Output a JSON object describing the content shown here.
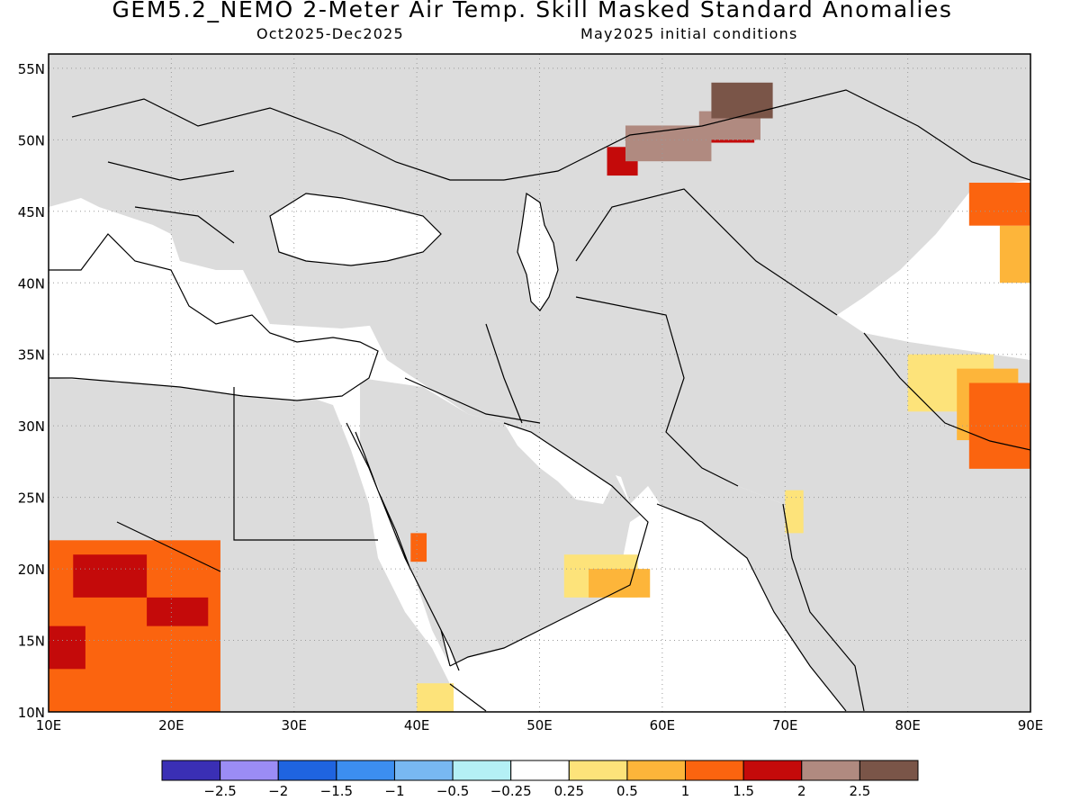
{
  "title": "GEM5.2_NEMO 2-Meter Air Temp. Skill Masked Standard Anomalies",
  "subtitle_left": "Oct2025-Dec2025",
  "subtitle_right": "May2025 initial conditions",
  "map": {
    "lon_range": [
      10,
      90
    ],
    "lat_range": [
      10,
      56
    ],
    "lat_ticks": [
      {
        "value": 55,
        "label": "55N"
      },
      {
        "value": 50,
        "label": "50N"
      },
      {
        "value": 45,
        "label": "45N"
      },
      {
        "value": 40,
        "label": "40N"
      },
      {
        "value": 35,
        "label": "35N"
      },
      {
        "value": 30,
        "label": "30N"
      },
      {
        "value": 25,
        "label": "25N"
      },
      {
        "value": 20,
        "label": "20N"
      },
      {
        "value": 15,
        "label": "15N"
      },
      {
        "value": 10,
        "label": "10N"
      }
    ],
    "lon_ticks": [
      {
        "value": 10,
        "label": "10E"
      },
      {
        "value": 20,
        "label": "20E"
      },
      {
        "value": 30,
        "label": "30E"
      },
      {
        "value": 40,
        "label": "40E"
      },
      {
        "value": 50,
        "label": "50E"
      },
      {
        "value": 60,
        "label": "60E"
      },
      {
        "value": 70,
        "label": "70E"
      },
      {
        "value": 80,
        "label": "80E"
      },
      {
        "value": 90,
        "label": "90E"
      }
    ],
    "colors": {
      "land_masked": "#dcdcdc",
      "water": "#ffffff",
      "grid": "#9a9a9a",
      "coast": "#000000"
    }
  },
  "colorbar": {
    "colors": [
      "#3a2fb5",
      "#9b8cf5",
      "#1f64e0",
      "#3c8ef0",
      "#78b8f2",
      "#b4f0f5",
      "#ffffff",
      "#fde37a",
      "#fdb53a",
      "#fb640f",
      "#c40a0a",
      "#b08a80",
      "#7a5548"
    ],
    "labels": [
      "-2.5",
      "-2",
      "-1.5",
      "-1",
      "-0.5",
      "-0.25",
      "0.25",
      "0.5",
      "1",
      "1.5",
      "2",
      "2.5"
    ]
  },
  "anomaly_patches": [
    {
      "level": "0.5",
      "color": "#fde37a",
      "lon": [
        52,
        58
      ],
      "lat": [
        18,
        21
      ]
    },
    {
      "level": "0.5",
      "color": "#fde37a",
      "lon": [
        80,
        87
      ],
      "lat": [
        31,
        35
      ]
    },
    {
      "level": "0.5",
      "color": "#fde37a",
      "lon": [
        40,
        43
      ],
      "lat": [
        10,
        12
      ]
    },
    {
      "level": "0.5",
      "color": "#fde37a",
      "lon": [
        70,
        71.5
      ],
      "lat": [
        22.5,
        25.5
      ]
    },
    {
      "level": "1",
      "color": "#fdb53a",
      "lon": [
        54,
        59
      ],
      "lat": [
        18,
        20
      ]
    },
    {
      "level": "1",
      "color": "#fdb53a",
      "lon": [
        84,
        89
      ],
      "lat": [
        29,
        34
      ]
    },
    {
      "level": "1",
      "color": "#fdb53a",
      "lon": [
        87.5,
        90
      ],
      "lat": [
        40,
        44
      ]
    },
    {
      "level": "1.5",
      "color": "#fb640f",
      "lon": [
        10,
        24
      ],
      "lat": [
        10,
        22
      ]
    },
    {
      "level": "1.5",
      "color": "#fb640f",
      "lon": [
        85,
        90
      ],
      "lat": [
        27,
        33
      ]
    },
    {
      "level": "1.5",
      "color": "#fb640f",
      "lon": [
        85,
        90
      ],
      "lat": [
        44,
        47
      ]
    },
    {
      "level": "1.5",
      "color": "#fb640f",
      "lon": [
        39.5,
        40.8
      ],
      "lat": [
        20.5,
        22.5
      ]
    },
    {
      "level": "2",
      "color": "#c40a0a",
      "lon": [
        12,
        18
      ],
      "lat": [
        18,
        21
      ]
    },
    {
      "level": "2",
      "color": "#c40a0a",
      "lon": [
        18,
        23
      ],
      "lat": [
        16,
        18
      ]
    },
    {
      "level": "2",
      "color": "#c40a0a",
      "lon": [
        10,
        13
      ],
      "lat": [
        13,
        16
      ]
    },
    {
      "level": "2",
      "color": "#c40a0a",
      "lon": [
        55.5,
        58
      ],
      "lat": [
        47.5,
        49.5
      ]
    },
    {
      "level": "2",
      "color": "#c40a0a",
      "lon": [
        64,
        67.5
      ],
      "lat": [
        49.8,
        50.8
      ]
    },
    {
      "level": "2.5",
      "color": "#b08a80",
      "lon": [
        57,
        64
      ],
      "lat": [
        48.5,
        51
      ]
    },
    {
      "level": "2.5",
      "color": "#b08a80",
      "lon": [
        63,
        68
      ],
      "lat": [
        50,
        52
      ]
    },
    {
      "level": "2.5+",
      "color": "#7a5548",
      "lon": [
        64,
        69
      ],
      "lat": [
        51.5,
        54
      ]
    }
  ]
}
